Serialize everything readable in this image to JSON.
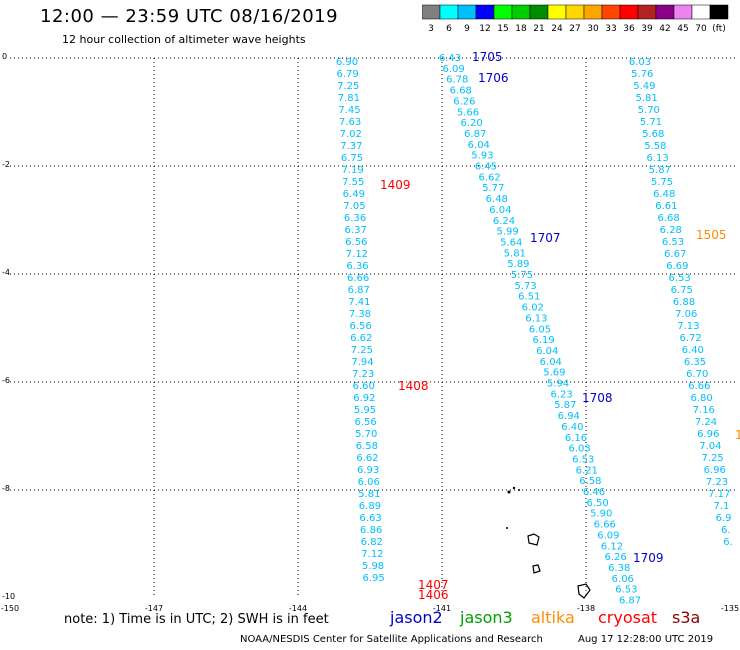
{
  "header": {
    "title": "12:00 — 23:59 UTC 08/16/2019",
    "subtitle": "12 hour collection of altimeter wave heights"
  },
  "colorbar": {
    "colors": [
      "#808080",
      "#00ffff",
      "#00bfff",
      "#0000ff",
      "#00ff00",
      "#00cd00",
      "#008b00",
      "#ffff00",
      "#ffd700",
      "#ffa500",
      "#ff4500",
      "#ff0000",
      "#b22222",
      "#8b008b",
      "#ee82ee",
      "#ffffff",
      "#000000"
    ],
    "labels": [
      "3",
      "6",
      "9",
      "12",
      "15",
      "18",
      "21",
      "24",
      "27",
      "30",
      "33",
      "36",
      "39",
      "42",
      "45",
      "70",
      "(ft)"
    ]
  },
  "axes": {
    "x_ticks": [
      "-150",
      "-147",
      "-144",
      "-141",
      "-138",
      "-135"
    ],
    "y_ticks": [
      "0",
      "-2",
      "-4",
      "-6",
      "-8",
      "-10"
    ]
  },
  "tracks": {
    "t1": [
      "6.90",
      "6.79",
      "7.25",
      "7.81",
      "7.45",
      "7.63",
      "7.02",
      "7.37",
      "6.75",
      "7.19",
      "7.55",
      "6.49",
      "7.05",
      "6.36",
      "6.37",
      "6.56",
      "7.12",
      "6.36",
      "6.66",
      "6.87",
      "7.41",
      "7.38",
      "6.56",
      "6.62",
      "7.25",
      "7.94",
      "7.23",
      "6.60",
      "6.92",
      "5.95",
      "6.56",
      "5.70",
      "6.58",
      "6.62",
      "6.93",
      "6.06",
      "5.81",
      "6.89",
      "6.63",
      "6.86",
      "6.82",
      "7.12",
      "5.98",
      "6.95"
    ],
    "t2": [
      "6.43",
      "6.09",
      "6.78",
      "6.68",
      "6.26",
      "5.66",
      "6.20",
      "6.87",
      "6.04",
      "5.93",
      "6.45",
      "6.62",
      "5.77",
      "6.48",
      "6.04",
      "6.24",
      "5.99",
      "5.64",
      "5.81",
      "5.89",
      "5.75",
      "5.73",
      "6.51",
      "6.02",
      "6.13",
      "6.05",
      "6.19",
      "6.04",
      "6.04",
      "5.69",
      "5.94",
      "6.23",
      "5.87",
      "6.94",
      "6.40",
      "6.16",
      "6.03",
      "6.53",
      "6.21",
      "6.58",
      "6.46",
      "6.50",
      "5.90",
      "6.66",
      "6.09",
      "6.12",
      "6.26",
      "6.38",
      "6.06",
      "6.53",
      "6.87"
    ],
    "t3": [
      "6.03",
      "5.76",
      "5.49",
      "5.81",
      "5.70",
      "5.71",
      "5.68",
      "5.58",
      "6.13",
      "5.87",
      "5.75",
      "6.48",
      "6.61",
      "6.68",
      "6.28",
      "6.53",
      "6.67",
      "6.69",
      "6.53",
      "6.75",
      "6.88",
      "7.06",
      "7.13",
      "6.72",
      "6.40",
      "6.35",
      "6.70",
      "6.66",
      "6.80",
      "7.16",
      "7.24",
      "6.96",
      "7.04",
      "7.25",
      "6.96",
      "7.23",
      "7.17",
      "7.1",
      "6.9",
      "6.",
      "6."
    ]
  },
  "pass_labels": [
    {
      "text": "1705",
      "color": "#0000cc"
    },
    {
      "text": "1706",
      "color": "#0000cc"
    },
    {
      "text": "1409",
      "color": "#ff0000"
    },
    {
      "text": "1707",
      "color": "#0000cc"
    },
    {
      "text": "1505",
      "color": "#ff8c00"
    },
    {
      "text": "1408",
      "color": "#ff0000"
    },
    {
      "text": "1708",
      "color": "#0000cc"
    },
    {
      "text": "1",
      "color": "#ff8c00"
    },
    {
      "text": "1709",
      "color": "#0000cc"
    },
    {
      "text": "1407",
      "color": "#ff0000"
    },
    {
      "text": "1406",
      "color": "#ff0000"
    }
  ],
  "note": "note: 1) Time is in UTC; 2) SWH is in feet",
  "legend": [
    {
      "text": "jason2",
      "color": "#0000cc"
    },
    {
      "text": "jason3",
      "color": "#00a000"
    },
    {
      "text": "altika",
      "color": "#ff8c00"
    },
    {
      "text": "cryosat",
      "color": "#ff0000"
    },
    {
      "text": "s3a",
      "color": "#8b0000"
    }
  ],
  "footer": {
    "credit": "NOAA/NESDIS Center for Satellite Applications and Research",
    "time": "Aug 17 12:28:00 UTC 2019"
  },
  "swh_color": "#00bfff"
}
